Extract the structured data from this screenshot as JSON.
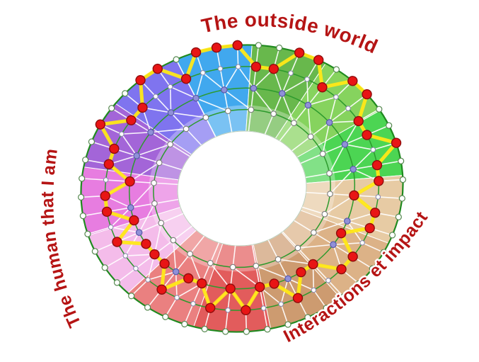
{
  "labels": {
    "top": "The outside world",
    "left": "The human that I am",
    "bottom_right": "Interactions et impact",
    "color": "#b51414"
  },
  "chart_data": {
    "type": "radial-assessment-wheel",
    "sector_start_deg": -17,
    "spokes": 48,
    "ring_fractions": {
      "outer": 1.0,
      "ring2": 0.85,
      "ring3": 0.7,
      "ring4": 0.55,
      "hole": 0.4
    },
    "sectors": [
      {
        "name": "blue",
        "color": "#41a8ee"
      },
      {
        "name": "green-1",
        "color": "#68b84c"
      },
      {
        "name": "green-2",
        "color": "#86d35e"
      },
      {
        "name": "green-3",
        "color": "#4cd553"
      },
      {
        "name": "tan-1",
        "color": "#e7cba4"
      },
      {
        "name": "tan-2",
        "color": "#dcb287"
      },
      {
        "name": "tan-3",
        "color": "#cd9b70"
      },
      {
        "name": "red-1",
        "color": "#e25c5c"
      },
      {
        "name": "red-2",
        "color": "#ea8080"
      },
      {
        "name": "pink",
        "color": "#f4bcea"
      },
      {
        "name": "magenta",
        "color": "#e77de0"
      },
      {
        "name": "purple",
        "color": "#a365d8"
      },
      {
        "name": "indigo",
        "color": "#7f74ef"
      }
    ],
    "profile_ring_per_spoke": [
      2,
      1,
      1,
      1,
      2,
      2,
      1,
      1,
      2,
      1,
      1,
      2,
      2,
      1,
      2,
      2,
      3,
      2,
      2,
      3,
      2,
      2,
      3,
      3,
      2,
      3,
      3,
      2,
      3,
      2,
      3,
      3,
      2,
      3,
      3,
      3,
      2,
      3,
      2,
      2,
      3,
      2,
      2,
      1,
      2,
      2,
      1,
      1
    ],
    "style": {
      "outer_ring_line_color": "#1f8a1f",
      "ring_line_color": "#2d9a2d",
      "grid_line_color": "#ffffff",
      "profile_line_color": "#ffe816",
      "marker_fill": "#e81515",
      "marker_stroke": "#8e0c0c",
      "outer_node_fill": "#ffffff",
      "outer_node_stroke": "#55884f",
      "ring2_node_fill": "#ffffff",
      "ring2_node_stroke": "#8a8aae",
      "mid_node_fill": "#9090d8",
      "mid_node_stroke": "#5858a8",
      "inner_node_fill": "#ffffff",
      "inner_node_stroke": "#7a7a7a",
      "hole_edge_color": "#b9cdb9",
      "inner_highlight": "rgba(255,255,255,0.30)"
    }
  }
}
